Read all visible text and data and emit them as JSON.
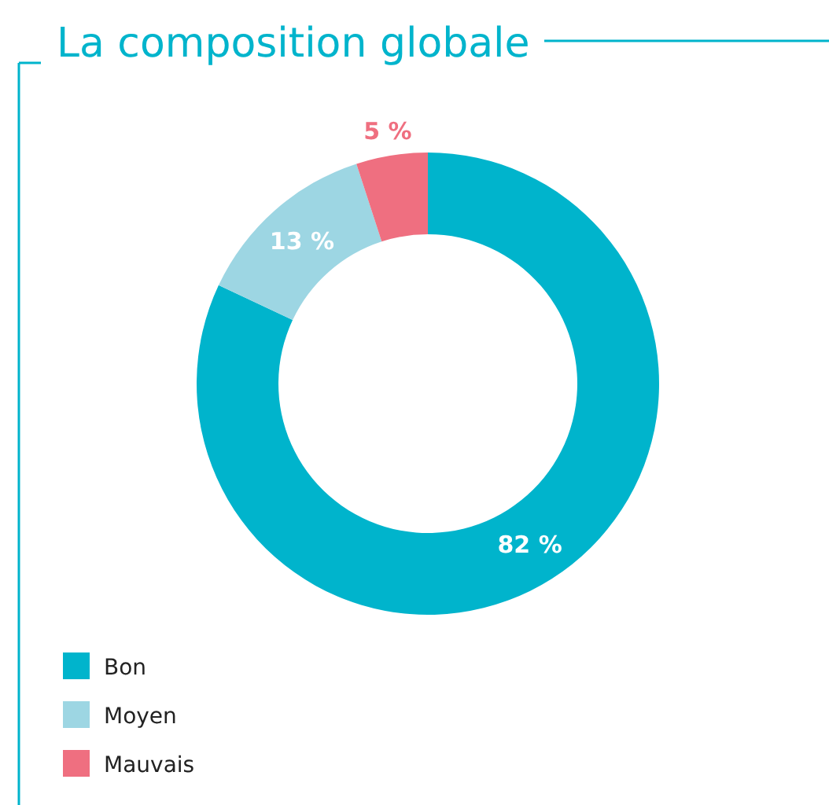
{
  "chart_data": {
    "type": "donut",
    "title": "La composition globale",
    "categories": [
      "Bon",
      "Moyen",
      "Mauvais"
    ],
    "values": [
      82,
      13,
      5
    ],
    "colors": [
      "#00b4cc",
      "#9dd6e3",
      "#ef6f80"
    ],
    "value_labels": [
      "82 %",
      "13 %",
      "5 %"
    ],
    "legend": "bottom left"
  }
}
